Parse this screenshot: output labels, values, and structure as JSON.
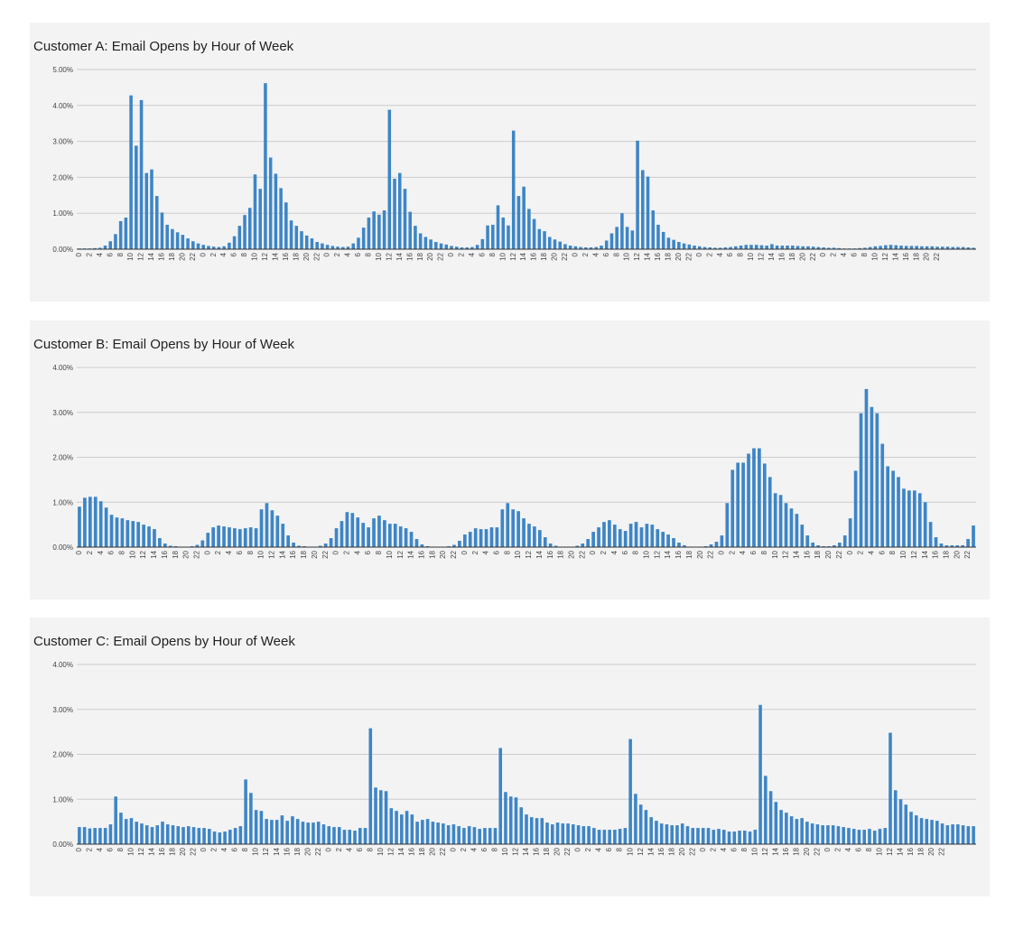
{
  "colors": {
    "bar": "#3d85c6",
    "grid": "#cccccc",
    "axis": "#333333",
    "panel": "#f3f3f3"
  },
  "chart_data": [
    {
      "type": "bar",
      "title": "Customer A:  Email Opens by Hour of Week",
      "xlabel": "",
      "ylabel": "",
      "y_format": "percent",
      "ylim": [
        0,
        5
      ],
      "yticks": [
        0,
        1,
        2,
        3,
        4,
        5
      ],
      "ytick_labels": [
        "0.00%",
        "1.00%",
        "2.00%",
        "3.00%",
        "4.00%",
        "5.00%"
      ],
      "tick_labels": [
        "0",
        "2",
        "4",
        "6",
        "8",
        "10",
        "12",
        "14",
        "16",
        "18",
        "20",
        "22",
        "0",
        "2",
        "4",
        "6",
        "8",
        "10",
        "12",
        "14",
        "16",
        "18",
        "20",
        "22",
        "0",
        "2",
        "4",
        "6",
        "8",
        "10",
        "12",
        "14",
        "16",
        "18",
        "20",
        "22",
        "0",
        "2",
        "4",
        "6",
        "8",
        "10",
        "12",
        "14",
        "16",
        "18",
        "20",
        "22",
        "0",
        "2",
        "4",
        "6",
        "8",
        "10",
        "12",
        "14",
        "16",
        "18",
        "20",
        "22",
        "0",
        "2",
        "4",
        "6",
        "8",
        "10",
        "12",
        "14",
        "16",
        "18",
        "20",
        "22",
        "0",
        "2",
        "4",
        "6",
        "8",
        "10",
        "12",
        "14",
        "16",
        "18",
        "20",
        "22"
      ],
      "grid": true,
      "values": [
        0.02,
        0.02,
        0.02,
        0.03,
        0.04,
        0.1,
        0.22,
        0.42,
        0.78,
        0.88,
        4.28,
        2.88,
        4.15,
        2.12,
        2.22,
        1.48,
        1.02,
        0.68,
        0.56,
        0.47,
        0.4,
        0.3,
        0.22,
        0.16,
        0.12,
        0.09,
        0.07,
        0.06,
        0.08,
        0.18,
        0.36,
        0.65,
        0.95,
        1.15,
        2.08,
        1.68,
        4.62,
        2.55,
        2.1,
        1.7,
        1.3,
        0.8,
        0.65,
        0.5,
        0.38,
        0.3,
        0.2,
        0.16,
        0.12,
        0.09,
        0.07,
        0.06,
        0.07,
        0.16,
        0.32,
        0.6,
        0.88,
        1.05,
        0.96,
        1.08,
        3.88,
        1.96,
        2.12,
        1.68,
        1.04,
        0.65,
        0.44,
        0.34,
        0.27,
        0.2,
        0.16,
        0.13,
        0.09,
        0.07,
        0.05,
        0.05,
        0.06,
        0.12,
        0.28,
        0.66,
        0.68,
        1.22,
        0.88,
        0.66,
        3.3,
        1.48,
        1.74,
        1.12,
        0.84,
        0.56,
        0.5,
        0.34,
        0.27,
        0.21,
        0.14,
        0.1,
        0.08,
        0.06,
        0.05,
        0.05,
        0.06,
        0.1,
        0.24,
        0.44,
        0.62,
        1.0,
        0.62,
        0.52,
        3.02,
        2.2,
        2.02,
        1.08,
        0.68,
        0.48,
        0.32,
        0.26,
        0.2,
        0.16,
        0.13,
        0.1,
        0.08,
        0.06,
        0.05,
        0.04,
        0.04,
        0.05,
        0.06,
        0.08,
        0.1,
        0.12,
        0.12,
        0.12,
        0.11,
        0.1,
        0.14,
        0.1,
        0.1,
        0.1,
        0.1,
        0.09,
        0.08,
        0.08,
        0.07,
        0.06,
        0.05,
        0.04,
        0.04,
        0.03,
        0.02,
        0.02,
        0.02,
        0.03,
        0.04,
        0.06,
        0.08,
        0.09,
        0.11,
        0.12,
        0.11,
        0.1,
        0.09,
        0.09,
        0.09,
        0.08,
        0.08,
        0.08,
        0.07,
        0.07,
        0.07,
        0.06,
        0.06,
        0.06,
        0.05,
        0.04
      ]
    },
    {
      "type": "bar",
      "title": "Customer B:  Email Opens by Hour of Week",
      "xlabel": "",
      "ylabel": "",
      "y_format": "percent",
      "ylim": [
        0,
        4
      ],
      "yticks": [
        0,
        1,
        2,
        3,
        4
      ],
      "ytick_labels": [
        "0.00%",
        "1.00%",
        "2.00%",
        "3.00%",
        "4.00%"
      ],
      "tick_labels": [
        "0",
        "2",
        "4",
        "6",
        "8",
        "10",
        "12",
        "14",
        "16",
        "18",
        "20",
        "22",
        "0",
        "2",
        "4",
        "6",
        "8",
        "10",
        "12",
        "14",
        "16",
        "18",
        "20",
        "22",
        "0",
        "2",
        "4",
        "6",
        "8",
        "10",
        "12",
        "14",
        "16",
        "18",
        "20",
        "22",
        "0",
        "2",
        "4",
        "6",
        "8",
        "10",
        "12",
        "14",
        "16",
        "18",
        "20",
        "22",
        "0",
        "2",
        "4",
        "6",
        "8",
        "10",
        "12",
        "14",
        "16",
        "18",
        "20",
        "22",
        "0",
        "2",
        "4",
        "6",
        "8",
        "10",
        "12",
        "14",
        "16",
        "18",
        "20",
        "22",
        "0",
        "2",
        "4",
        "6",
        "8",
        "10",
        "12",
        "14",
        "16",
        "18",
        "20",
        "22"
      ],
      "grid": true,
      "values": [
        0.9,
        1.1,
        1.12,
        1.12,
        1.02,
        0.88,
        0.72,
        0.66,
        0.64,
        0.6,
        0.58,
        0.56,
        0.5,
        0.46,
        0.4,
        0.2,
        0.08,
        0.03,
        0.02,
        0.01,
        0.01,
        0.02,
        0.05,
        0.15,
        0.32,
        0.44,
        0.48,
        0.46,
        0.44,
        0.42,
        0.4,
        0.42,
        0.44,
        0.42,
        0.84,
        0.98,
        0.82,
        0.7,
        0.52,
        0.26,
        0.1,
        0.03,
        0.02,
        0.01,
        0.01,
        0.03,
        0.08,
        0.2,
        0.42,
        0.58,
        0.78,
        0.76,
        0.66,
        0.54,
        0.44,
        0.64,
        0.7,
        0.6,
        0.52,
        0.52,
        0.46,
        0.42,
        0.34,
        0.18,
        0.06,
        0.02,
        0.01,
        0.01,
        0.01,
        0.02,
        0.05,
        0.14,
        0.28,
        0.34,
        0.42,
        0.4,
        0.4,
        0.44,
        0.44,
        0.84,
        0.98,
        0.84,
        0.8,
        0.64,
        0.52,
        0.46,
        0.38,
        0.22,
        0.08,
        0.03,
        0.01,
        0.01,
        0.01,
        0.03,
        0.08,
        0.18,
        0.34,
        0.44,
        0.56,
        0.6,
        0.5,
        0.4,
        0.36,
        0.52,
        0.56,
        0.44,
        0.52,
        0.5,
        0.4,
        0.34,
        0.28,
        0.2,
        0.1,
        0.04,
        0.01,
        0.01,
        0.01,
        0.02,
        0.06,
        0.12,
        0.26,
        0.98,
        1.72,
        1.88,
        1.88,
        2.08,
        2.2,
        2.2,
        1.86,
        1.56,
        1.2,
        1.16,
        0.98,
        0.86,
        0.74,
        0.5,
        0.26,
        0.1,
        0.04,
        0.02,
        0.02,
        0.04,
        0.1,
        0.26,
        0.64,
        1.7,
        2.98,
        3.52,
        3.12,
        2.98,
        2.3,
        1.8,
        1.7,
        1.56,
        1.3,
        1.26,
        1.26,
        1.2,
        1.0,
        0.56,
        0.22,
        0.08,
        0.04,
        0.04,
        0.04,
        0.04,
        0.18,
        0.48
      ]
    },
    {
      "type": "bar",
      "title": "Customer C:  Email Opens by Hour of Week",
      "xlabel": "",
      "ylabel": "",
      "y_format": "percent",
      "ylim": [
        0,
        4
      ],
      "yticks": [
        0,
        1,
        2,
        3,
        4
      ],
      "ytick_labels": [
        "0.00%",
        "1.00%",
        "2.00%",
        "3.00%",
        "4.00%"
      ],
      "tick_labels": [
        "0",
        "2",
        "4",
        "6",
        "8",
        "10",
        "12",
        "14",
        "16",
        "18",
        "20",
        "22",
        "0",
        "2",
        "4",
        "6",
        "8",
        "10",
        "12",
        "14",
        "16",
        "18",
        "20",
        "22",
        "0",
        "2",
        "4",
        "6",
        "8",
        "10",
        "12",
        "14",
        "16",
        "18",
        "20",
        "22",
        "0",
        "2",
        "4",
        "6",
        "8",
        "10",
        "12",
        "14",
        "16",
        "18",
        "20",
        "22",
        "0",
        "2",
        "4",
        "6",
        "8",
        "10",
        "12",
        "14",
        "16",
        "18",
        "20",
        "22",
        "0",
        "2",
        "4",
        "6",
        "8",
        "10",
        "12",
        "14",
        "16",
        "18",
        "20",
        "22",
        "0",
        "2",
        "4",
        "6",
        "8",
        "10",
        "12",
        "14",
        "16",
        "18",
        "20",
        "22"
      ],
      "grid": true,
      "values": [
        0.38,
        0.38,
        0.35,
        0.36,
        0.36,
        0.36,
        0.44,
        1.06,
        0.7,
        0.56,
        0.58,
        0.5,
        0.46,
        0.42,
        0.38,
        0.42,
        0.5,
        0.44,
        0.42,
        0.4,
        0.38,
        0.4,
        0.38,
        0.36,
        0.36,
        0.34,
        0.28,
        0.26,
        0.28,
        0.32,
        0.36,
        0.4,
        1.44,
        1.14,
        0.76,
        0.74,
        0.56,
        0.54,
        0.54,
        0.64,
        0.52,
        0.62,
        0.56,
        0.5,
        0.48,
        0.48,
        0.5,
        0.44,
        0.4,
        0.38,
        0.38,
        0.32,
        0.32,
        0.3,
        0.36,
        0.36,
        2.58,
        1.26,
        1.2,
        1.18,
        0.8,
        0.74,
        0.66,
        0.74,
        0.66,
        0.5,
        0.54,
        0.56,
        0.5,
        0.48,
        0.46,
        0.42,
        0.44,
        0.4,
        0.36,
        0.4,
        0.38,
        0.34,
        0.36,
        0.36,
        0.36,
        2.14,
        1.16,
        1.06,
        1.04,
        0.82,
        0.66,
        0.6,
        0.58,
        0.58,
        0.48,
        0.44,
        0.48,
        0.46,
        0.46,
        0.44,
        0.42,
        0.4,
        0.4,
        0.36,
        0.32,
        0.32,
        0.32,
        0.32,
        0.34,
        0.36,
        2.34,
        1.12,
        0.88,
        0.76,
        0.6,
        0.52,
        0.46,
        0.44,
        0.42,
        0.42,
        0.46,
        0.4,
        0.36,
        0.36,
        0.36,
        0.36,
        0.32,
        0.34,
        0.32,
        0.28,
        0.28,
        0.3,
        0.3,
        0.28,
        0.32,
        3.1,
        1.52,
        1.18,
        0.94,
        0.76,
        0.7,
        0.62,
        0.56,
        0.58,
        0.5,
        0.46,
        0.44,
        0.42,
        0.42,
        0.42,
        0.4,
        0.38,
        0.36,
        0.34,
        0.32,
        0.32,
        0.34,
        0.3,
        0.34,
        0.36,
        2.48,
        1.2,
        1.0,
        0.88,
        0.72,
        0.64,
        0.58,
        0.56,
        0.54,
        0.52,
        0.46,
        0.42,
        0.44,
        0.44,
        0.42,
        0.4,
        0.4
      ]
    }
  ]
}
